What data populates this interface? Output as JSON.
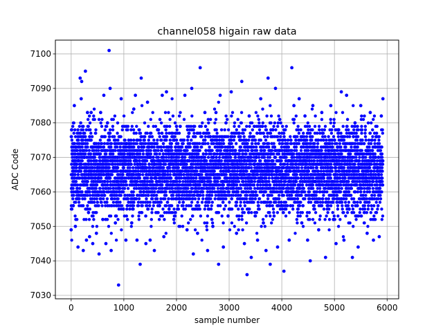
{
  "chart_data": {
    "type": "scatter",
    "title": "channel058 higain raw data",
    "xlabel": "sample number",
    "ylabel": "ADC Code",
    "xlim": [
      -300,
      6220
    ],
    "ylim": [
      7029,
      7104
    ],
    "xticks": [
      0,
      1000,
      2000,
      3000,
      4000,
      5000,
      6000
    ],
    "yticks": [
      7030,
      7040,
      7050,
      7060,
      7070,
      7080,
      7090,
      7100
    ],
    "grid": true,
    "marker_color": "#0000ff",
    "series": [
      {
        "n_points": 6000,
        "x_start": 0,
        "x_end": 5920,
        "y_center": 7066,
        "y_typical_range": [
          7050,
          7083
        ],
        "points": [
          [
            0,
            7049
          ],
          [
            10,
            7078
          ],
          [
            30,
            7069
          ],
          [
            40,
            7056
          ],
          [
            60,
            7085
          ],
          [
            80,
            7050
          ],
          [
            90,
            7073
          ],
          [
            110,
            7060
          ],
          [
            130,
            7044
          ],
          [
            150,
            7066
          ],
          [
            170,
            7093
          ],
          [
            190,
            7087
          ],
          [
            200,
            7092
          ],
          [
            230,
            7043
          ],
          [
            250,
            7070
          ],
          [
            270,
            7095
          ],
          [
            290,
            7046
          ],
          [
            310,
            7083
          ],
          [
            330,
            7054
          ],
          [
            350,
            7047
          ],
          [
            380,
            7083
          ],
          [
            410,
            7045
          ],
          [
            440,
            7074
          ],
          [
            480,
            7048
          ],
          [
            510,
            7064
          ],
          [
            530,
            7042
          ],
          [
            560,
            7083
          ],
          [
            600,
            7052
          ],
          [
            620,
            7088
          ],
          [
            660,
            7045
          ],
          [
            690,
            7080
          ],
          [
            720,
            7101
          ],
          [
            740,
            7090
          ],
          [
            760,
            7043
          ],
          [
            800,
            7067
          ],
          [
            840,
            7051
          ],
          [
            880,
            7070
          ],
          [
            900,
            7033
          ],
          [
            950,
            7087
          ],
          [
            990,
            7055
          ],
          [
            1040,
            7046
          ],
          [
            1100,
            7074
          ],
          [
            1150,
            7051
          ],
          [
            1190,
            7084
          ],
          [
            1220,
            7088
          ],
          [
            1250,
            7046
          ],
          [
            1280,
            7073
          ],
          [
            1310,
            7039
          ],
          [
            1330,
            7093
          ],
          [
            1380,
            7060
          ],
          [
            1420,
            7045
          ],
          [
            1450,
            7086
          ],
          [
            1500,
            7046
          ],
          [
            1540,
            7069
          ],
          [
            1580,
            7043
          ],
          [
            1640,
            7078
          ],
          [
            1680,
            7056
          ],
          [
            1730,
            7088
          ],
          [
            1760,
            7047
          ],
          [
            1810,
            7089
          ],
          [
            1860,
            7055
          ],
          [
            1900,
            7073
          ],
          [
            1950,
            7052
          ],
          [
            2000,
            7079
          ],
          [
            2050,
            7058
          ],
          [
            2120,
            7069
          ],
          [
            2160,
            7088
          ],
          [
            2200,
            7049
          ],
          [
            2240,
            7077
          ],
          [
            2290,
            7090
          ],
          [
            2320,
            7042
          ],
          [
            2360,
            7062
          ],
          [
            2400,
            7048
          ],
          [
            2450,
            7096
          ],
          [
            2490,
            7063
          ],
          [
            2540,
            7083
          ],
          [
            2590,
            7043
          ],
          [
            2640,
            7076
          ],
          [
            2690,
            7050
          ],
          [
            2750,
            7083
          ],
          [
            2800,
            7039
          ],
          [
            2830,
            7088
          ],
          [
            2890,
            7044
          ],
          [
            2940,
            7080
          ],
          [
            2980,
            7053
          ],
          [
            3040,
            7089
          ],
          [
            3080,
            7063
          ],
          [
            3140,
            7048
          ],
          [
            3200,
            7075
          ],
          [
            3240,
            7092
          ],
          [
            3290,
            7045
          ],
          [
            3340,
            7036
          ],
          [
            3380,
            7082
          ],
          [
            3420,
            7041
          ],
          [
            3480,
            7068
          ],
          [
            3540,
            7046
          ],
          [
            3600,
            7087
          ],
          [
            3650,
            7051
          ],
          [
            3700,
            7043
          ],
          [
            3740,
            7093
          ],
          [
            3780,
            7039
          ],
          [
            3830,
            7078
          ],
          [
            3880,
            7090
          ],
          [
            3920,
            7044
          ],
          [
            3960,
            7081
          ],
          [
            4000,
            7056
          ],
          [
            4040,
            7037
          ],
          [
            4090,
            7072
          ],
          [
            4140,
            7046
          ],
          [
            4190,
            7096
          ],
          [
            4230,
            7085
          ],
          [
            4280,
            7060
          ],
          [
            4330,
            7087
          ],
          [
            4380,
            7051
          ],
          [
            4440,
            7082
          ],
          [
            4490,
            7046
          ],
          [
            4540,
            7040
          ],
          [
            4590,
            7085
          ],
          [
            4640,
            7063
          ],
          [
            4700,
            7049
          ],
          [
            4760,
            7083
          ],
          [
            4830,
            7041
          ],
          [
            4880,
            7072
          ],
          [
            4930,
            7085
          ],
          [
            4980,
            7052
          ],
          [
            5030,
            7045
          ],
          [
            5080,
            7078
          ],
          [
            5130,
            7089
          ],
          [
            5180,
            7046
          ],
          [
            5230,
            7088
          ],
          [
            5280,
            7055
          ],
          [
            5340,
            7041
          ],
          [
            5390,
            7080
          ],
          [
            5450,
            7044
          ],
          [
            5500,
            7085
          ],
          [
            5560,
            7058
          ],
          [
            5620,
            7048
          ],
          [
            5680,
            7083
          ],
          [
            5740,
            7046
          ],
          [
            5800,
            7076
          ],
          [
            5850,
            7047
          ],
          [
            5890,
            7082
          ],
          [
            5920,
            7087
          ]
        ]
      }
    ]
  }
}
